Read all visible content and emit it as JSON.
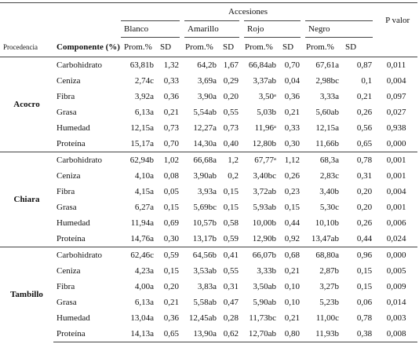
{
  "table": {
    "header": {
      "group": "Accesiones",
      "p_value": "P valor",
      "accessions": [
        "Blanco",
        "Amarillo",
        "Rojo",
        "Negro"
      ],
      "columns": [
        "Procedencia",
        "Componente (%)",
        "Prom.%",
        "SD",
        "Prom.%",
        "SD",
        "Prom.%",
        "SD",
        "Prom.%",
        "SD"
      ]
    },
    "groups": [
      {
        "name": "Acocro",
        "rows": [
          [
            "Carbohidrato",
            "63,81b",
            "1,32",
            "64,2b",
            "1,67",
            "66,84ab",
            "0,70",
            "67,61a",
            "0,87",
            "0,011"
          ],
          [
            "Ceniza",
            "2,74c",
            "0,33",
            "3,69a",
            "0,29",
            "3,37ab",
            "0,04",
            "2,98bc",
            "0,1",
            "0,004"
          ],
          [
            "Fibra",
            "3,92a",
            "0,36",
            "3,90a",
            "0,20",
            "3,50ᵃ",
            "0,36",
            "3,33a",
            "0,21",
            "0,097"
          ],
          [
            "Grasa",
            "6,13a",
            "0,21",
            "5,54ab",
            "0,55",
            "5,03b",
            "0,21",
            "5,60ab",
            "0,26",
            "0,027"
          ],
          [
            "Humedad",
            "12,15a",
            "0,73",
            "12,27a",
            "0,73",
            "11,96ᵃ",
            "0,33",
            "12,15a",
            "0,56",
            "0,938"
          ],
          [
            "Proteína",
            "15,17a",
            "0,70",
            "14,30a",
            "0,40",
            "12,80b",
            "0,30",
            "11,66b",
            "0,65",
            "0,000"
          ]
        ]
      },
      {
        "name": "Chiara",
        "rows": [
          [
            "Carbohidrato",
            "62,94b",
            "1,02",
            "66,68a",
            "1,2",
            "67,77ᵃ",
            "1,12",
            "68,3a",
            "0,78",
            "0,001"
          ],
          [
            "Ceniza",
            "4,10a",
            "0,08",
            "3,90ab",
            "0,2",
            "3,40bc",
            "0,26",
            "2,83c",
            "0,31",
            "0,001"
          ],
          [
            "Fibra",
            "4,15a",
            "0,05",
            "3,93a",
            "0,15",
            "3,72ab",
            "0,23",
            "3,40b",
            "0,20",
            "0,004"
          ],
          [
            "Grasa",
            "6,27a",
            "0,15",
            "5,69bc",
            "0,15",
            "5,93ab",
            "0,15",
            "5,30c",
            "0,20",
            "0,001"
          ],
          [
            "Humedad",
            "11,94a",
            "0,69",
            "10,57b",
            "0,58",
            "10,00b",
            "0,44",
            "10,10b",
            "0,26",
            "0,006"
          ],
          [
            "Proteína",
            "14,76a",
            "0,30",
            "13,17b",
            "0,59",
            "12,90b",
            "0,92",
            "13,47ab",
            "0,44",
            "0,024"
          ]
        ]
      },
      {
        "name": "Tambillo",
        "rows": [
          [
            "Carbohidrato",
            "62,46c",
            "0,59",
            "64,56b",
            "0,41",
            "66,07b",
            "0,68",
            "68,80a",
            "0,96",
            "0,000"
          ],
          [
            "Ceniza",
            "4,23a",
            "0,15",
            "3,53ab",
            "0,55",
            "3,33b",
            "0,21",
            "2,87b",
            "0,15",
            "0,005"
          ],
          [
            "Fibra",
            "4,00a",
            "0,20",
            "3,83a",
            "0,31",
            "3,50ab",
            "0,10",
            "3,27b",
            "0,15",
            "0,009"
          ],
          [
            "Grasa",
            "6,13a",
            "0,21",
            "5,58ab",
            "0,47",
            "5,90ab",
            "0,10",
            "5,23b",
            "0,06",
            "0,014"
          ],
          [
            "Humedad",
            "13,04a",
            "0,36",
            "12,45ab",
            "0,28",
            "11,73bc",
            "0,21",
            "11,00c",
            "0,78",
            "0,003"
          ],
          [
            "Proteína",
            "14,13a",
            "0,65",
            "13,90a",
            "0,62",
            "12,70ab",
            "0,80",
            "11,93b",
            "0,38",
            "0,008"
          ]
        ]
      }
    ]
  }
}
